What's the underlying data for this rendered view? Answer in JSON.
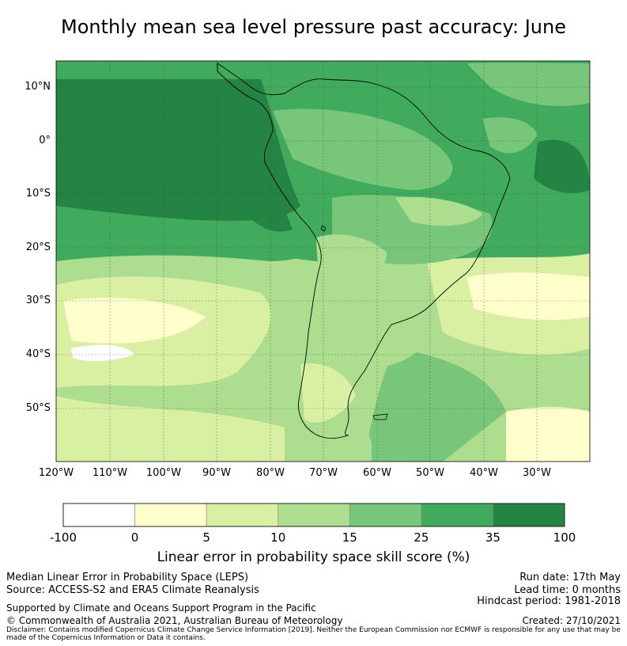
{
  "title": "Monthly mean sea level pressure past accuracy: June",
  "map": {
    "lat_labels": [
      "10°N",
      "0°",
      "10°S",
      "20°S",
      "30°S",
      "40°S",
      "50°S"
    ],
    "lon_labels": [
      "120°W",
      "110°W",
      "100°W",
      "90°W",
      "80°W",
      "70°W",
      "60°W",
      "50°W",
      "40°W",
      "30°W"
    ],
    "extent": {
      "lon": [
        -120,
        -20
      ],
      "lat": [
        -60,
        15
      ]
    }
  },
  "colorbar": {
    "ticks": [
      "-100",
      "0",
      "5",
      "10",
      "15",
      "25",
      "35",
      "100"
    ],
    "colors": [
      "#ffffff",
      "#ffffcc",
      "#d9f0a3",
      "#addd8e",
      "#78c679",
      "#41ab5d",
      "#238443"
    ],
    "title": "Linear error in probability space skill score (%)"
  },
  "footer": {
    "left1": "Median Linear Error in Probability Space (LEPS)",
    "left2": "Source: ACCESS-S2 and ERA5 Climate Reanalysis",
    "left3": "Supported by Climate and Oceans Support Program in the Pacific",
    "left4": "© Commonwealth of Australia 2021, Australian Bureau of Meteorology",
    "right1": "Run date: 17th May",
    "right2": "Lead time: 0 months",
    "right3": "Hindcast period: 1981-2018",
    "right4": "Created: 27/10/2021",
    "disclaimer": "Disclaimer: Contains modified Copernicus Climate Change Service Information [2019]. Neither the European Commission nor ECMWF is responsible for any use that may be made of the Copernicus Information or Data it contains."
  }
}
